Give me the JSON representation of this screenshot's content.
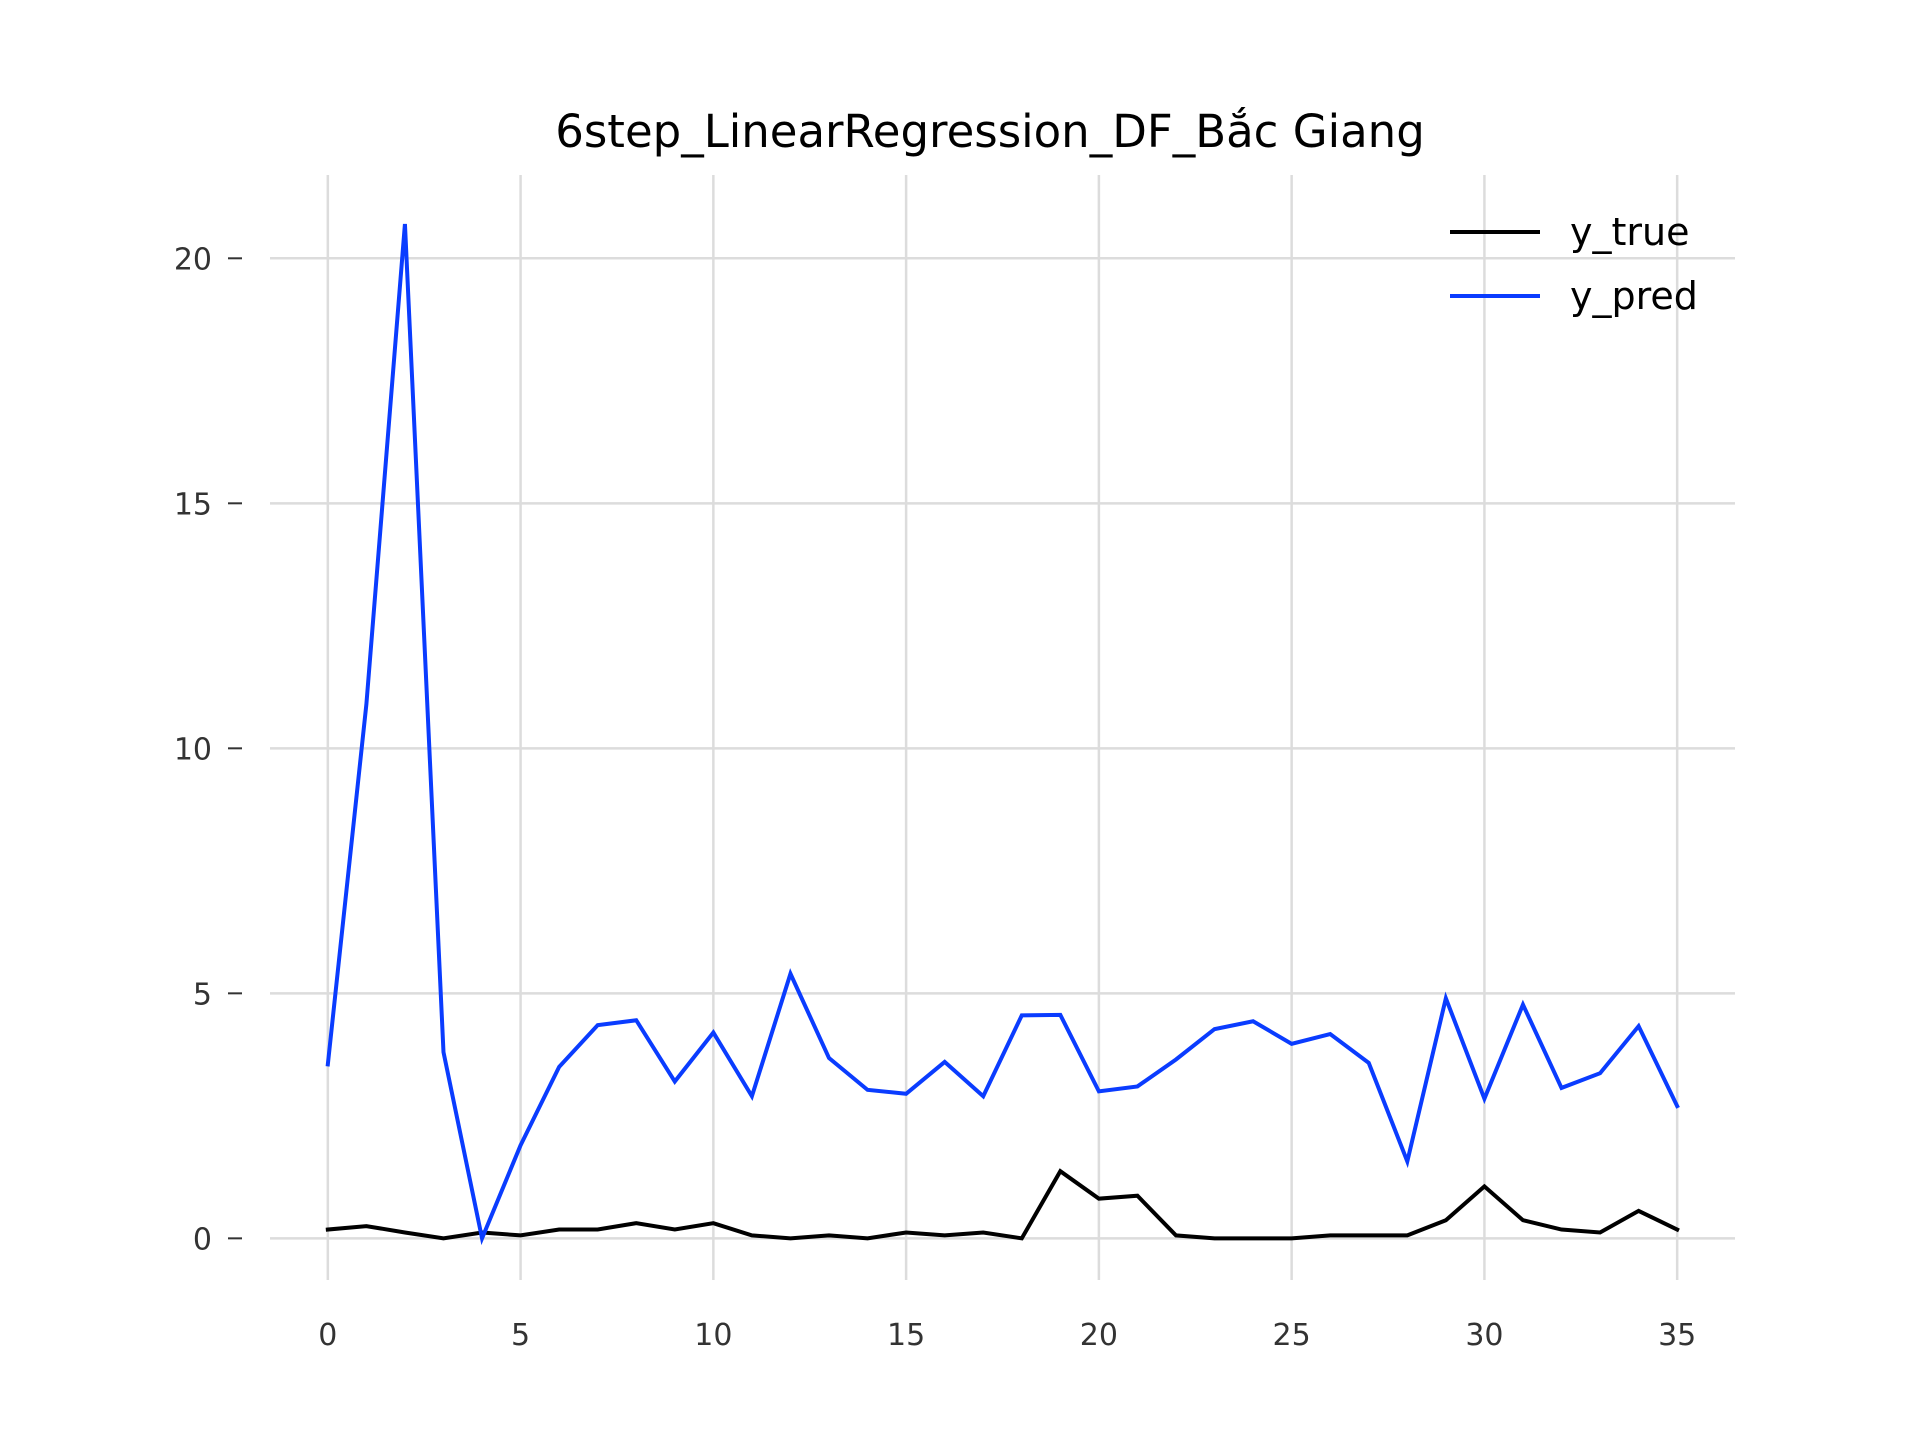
{
  "chart_data": {
    "type": "line",
    "title": "6step_LinearRegression_DF_Bắc Giang",
    "xlabel": "",
    "ylabel": "",
    "xlim": [
      -1.5,
      36.5
    ],
    "ylim": [
      -0.85,
      21.7
    ],
    "x_ticks": [
      0,
      5,
      10,
      15,
      20,
      25,
      30,
      35
    ],
    "y_ticks": [
      0,
      5,
      10,
      15,
      20
    ],
    "grid": true,
    "legend_position": "top-right",
    "x": [
      0,
      1,
      2,
      3,
      4,
      5,
      6,
      7,
      8,
      9,
      10,
      11,
      12,
      13,
      14,
      15,
      16,
      17,
      18,
      19,
      20,
      21,
      22,
      23,
      24,
      25,
      26,
      27,
      28,
      29,
      30,
      31,
      32,
      33,
      34,
      35
    ],
    "series": [
      {
        "name": "y_true",
        "color": "#000000",
        "values": [
          0.18,
          0.25,
          0.12,
          0.0,
          0.12,
          0.06,
          0.18,
          0.18,
          0.31,
          0.18,
          0.31,
          0.06,
          0.0,
          0.06,
          0.0,
          0.12,
          0.06,
          0.12,
          0.0,
          1.37,
          0.81,
          0.87,
          0.06,
          0.0,
          0.0,
          0.0,
          0.06,
          0.06,
          0.06,
          0.37,
          1.06,
          0.37,
          0.18,
          0.12,
          0.56,
          0.18
        ]
      },
      {
        "name": "y_pred",
        "color": "#0a3cff",
        "values": [
          3.55,
          10.9,
          20.7,
          3.8,
          0.0,
          1.9,
          3.5,
          4.35,
          4.45,
          3.2,
          4.2,
          2.9,
          5.4,
          3.68,
          3.03,
          2.95,
          3.6,
          2.9,
          4.55,
          4.56,
          3.0,
          3.1,
          3.65,
          4.27,
          4.43,
          3.97,
          4.17,
          3.58,
          1.57,
          4.9,
          2.85,
          4.77,
          3.07,
          3.37,
          4.33,
          2.7
        ]
      }
    ]
  }
}
